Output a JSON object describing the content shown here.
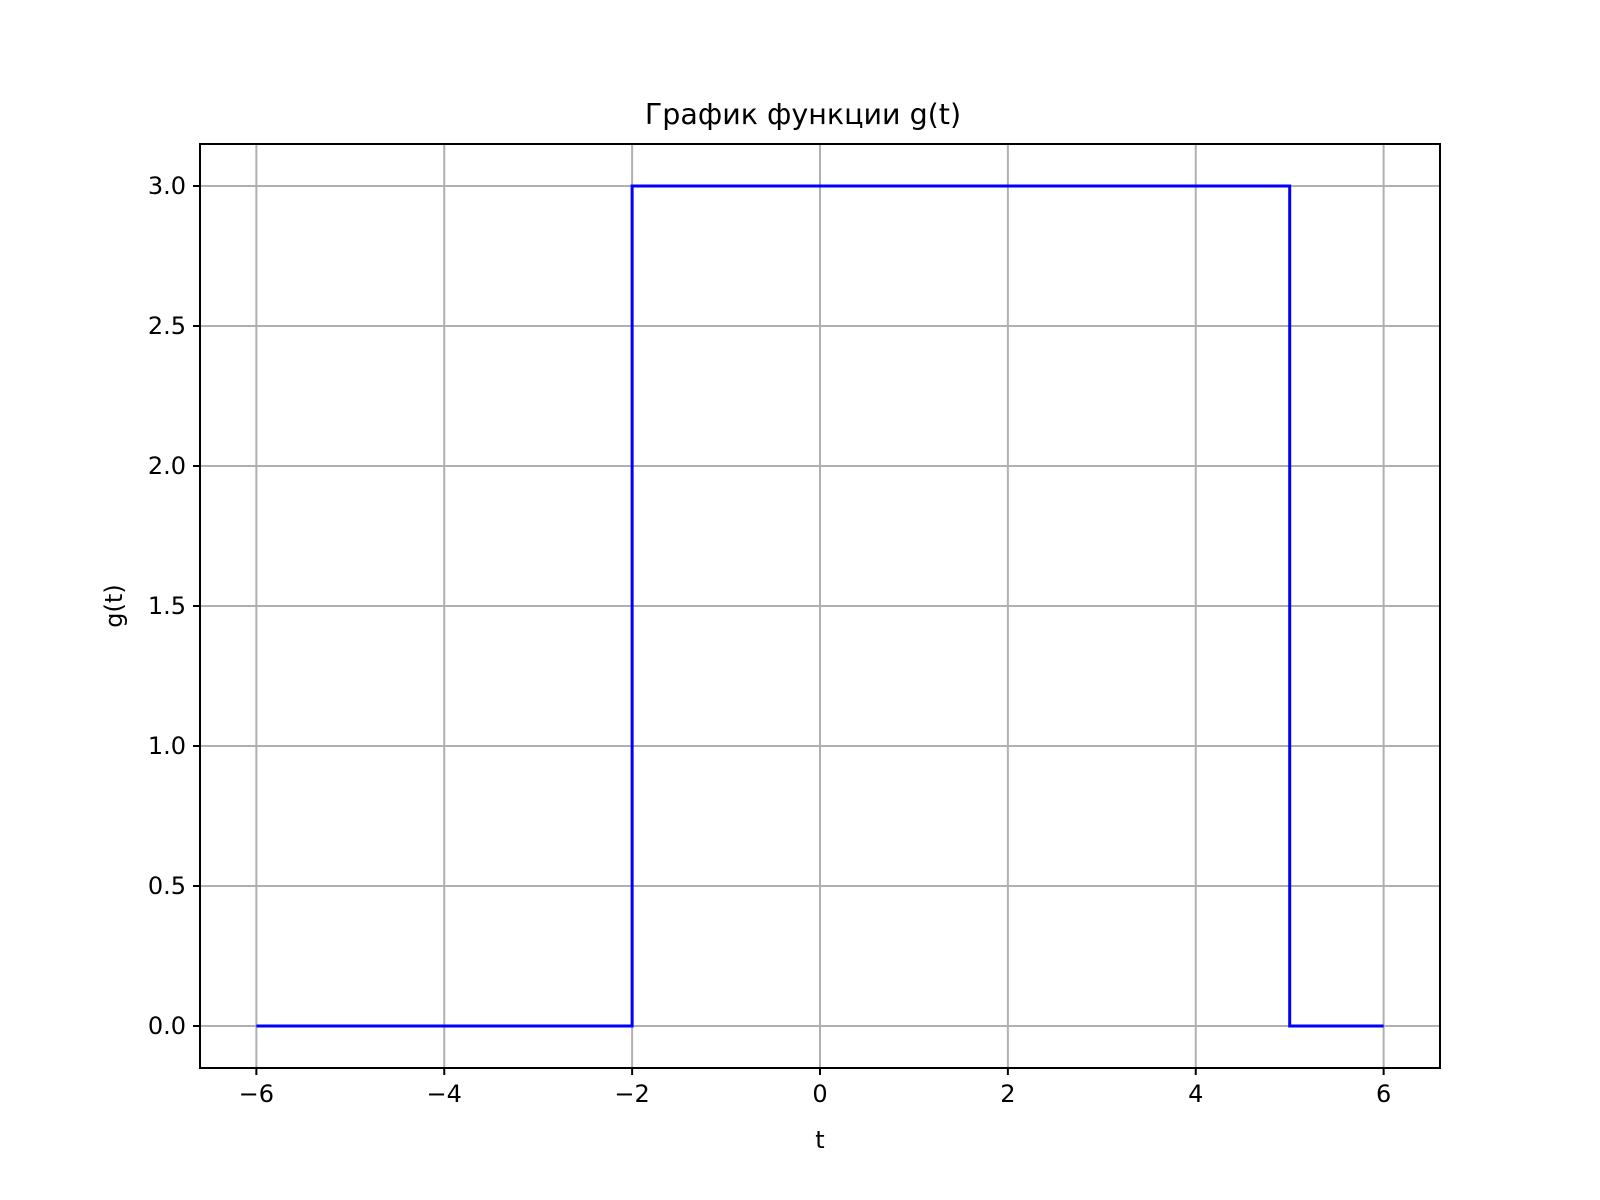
{
  "chart_data": {
    "type": "line",
    "title": "График функции g(t)",
    "xlabel": "t",
    "ylabel": "g(t)",
    "xlim": [
      -6.6,
      6.6
    ],
    "ylim": [
      -0.15,
      3.15
    ],
    "xticks": [
      -6,
      -4,
      -2,
      0,
      2,
      4,
      6
    ],
    "xtick_labels": [
      "−6",
      "−4",
      "−2",
      "0",
      "2",
      "4",
      "6"
    ],
    "yticks": [
      0.0,
      0.5,
      1.0,
      1.5,
      2.0,
      2.5,
      3.0
    ],
    "ytick_labels": [
      "0.0",
      "0.5",
      "1.0",
      "1.5",
      "2.0",
      "2.5",
      "3.0"
    ],
    "grid": true,
    "series": [
      {
        "color": "#0000ff",
        "x": [
          -6,
          -2,
          -2,
          5,
          5,
          6
        ],
        "y": [
          0,
          0,
          3,
          3,
          0,
          0
        ]
      }
    ]
  }
}
